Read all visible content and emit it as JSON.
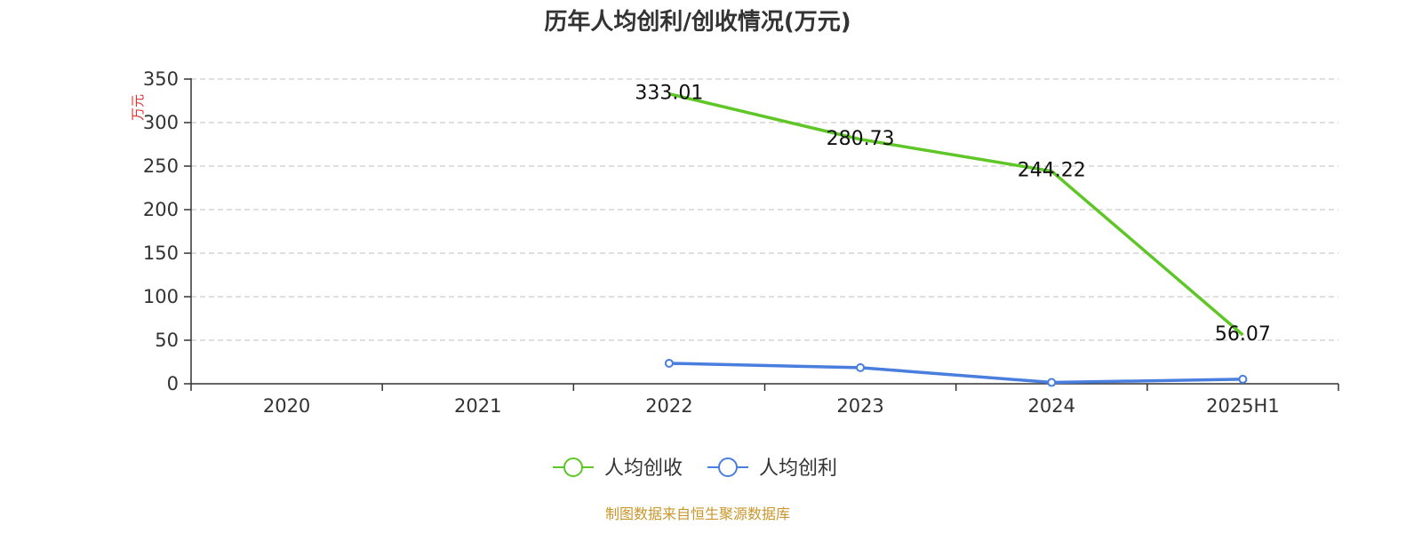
{
  "chart_data": {
    "type": "line",
    "title": "历年人均创利/创收情况(万元)",
    "ylabel": "万元",
    "ylim": [
      0,
      350
    ],
    "yticks": [
      0,
      50,
      100,
      150,
      200,
      250,
      300,
      350
    ],
    "categories": [
      "2020",
      "2021",
      "2022",
      "2023",
      "2024",
      "2025H1"
    ],
    "grid": true,
    "legend_position": "bottom",
    "series": [
      {
        "name": "人均创收",
        "color": "#5ec626",
        "values": [
          null,
          null,
          333.01,
          280.73,
          244.22,
          56.07
        ],
        "labels": [
          "",
          "",
          "333.01",
          "280.73",
          "244.22",
          "56.07"
        ],
        "show_markers": false
      },
      {
        "name": "人均创利",
        "color": "#4a7ede",
        "values": [
          null,
          null,
          23.5,
          18.5,
          1.5,
          5.2
        ],
        "labels": [
          "",
          "",
          "",
          "",
          "",
          ""
        ],
        "show_markers": true
      }
    ]
  },
  "source_note": "制图数据来自恒生聚源数据库",
  "colors": {
    "ylabel": "#e03030",
    "source": "#c8962c",
    "axis": "#333333",
    "grid": "#cccccc"
  }
}
